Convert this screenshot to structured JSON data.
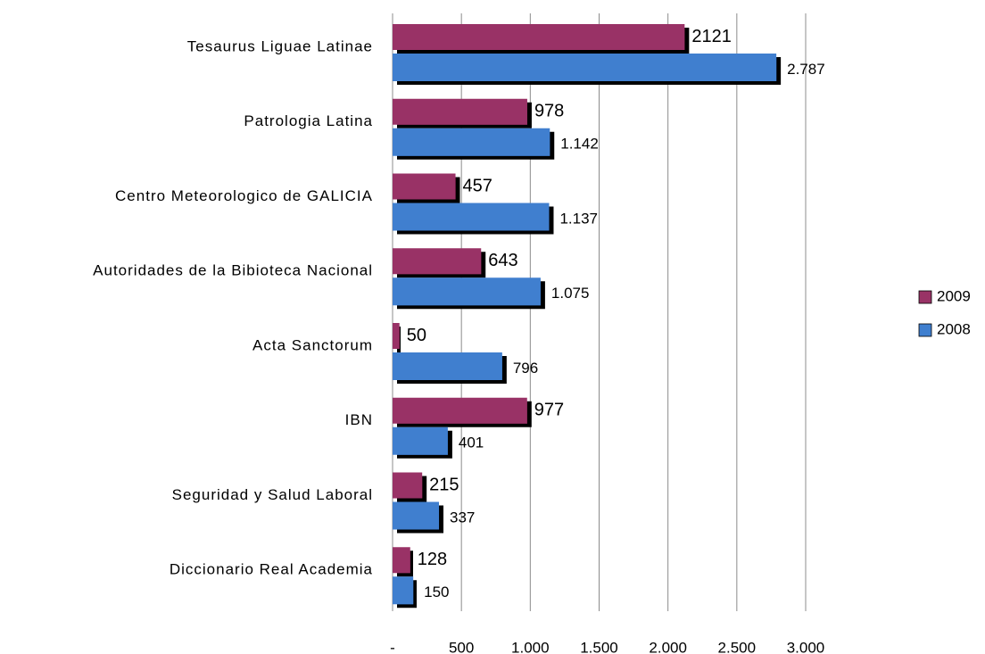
{
  "chart_data": {
    "type": "barh",
    "categories": [
      "Tesaurus Liguae Latinae",
      "Patrologia Latina",
      "Centro Meteorologico de GALICIA",
      "Autoridades de la Bibioteca Nacional",
      "Acta Sanctorum",
      "IBN",
      "Seguridad y Salud Laboral",
      "Diccionario Real Academia"
    ],
    "series": [
      {
        "name": "2009",
        "color": "#993366",
        "values": [
          2121,
          978,
          457,
          643,
          50,
          977,
          215,
          128
        ]
      },
      {
        "name": "2008",
        "color": "#3f7fcf",
        "values": [
          2787,
          1142,
          1137,
          1075,
          796,
          401,
          337,
          150
        ],
        "value_labels": [
          "2.787",
          "1.142",
          "1.137",
          "1.075",
          "796",
          "401",
          "337",
          "150"
        ]
      }
    ],
    "xlim": [
      0,
      3000
    ],
    "xticks": [
      {
        "value": 0,
        "label": "-"
      },
      500,
      {
        "value": 1000,
        "label": "1.000"
      },
      {
        "value": 1500,
        "label": "1.500"
      },
      {
        "value": 2000,
        "label": "2.000"
      },
      {
        "value": 2500,
        "label": "2.500"
      },
      {
        "value": 3000,
        "label": "3.000"
      }
    ],
    "grid": true,
    "legend": "right"
  }
}
